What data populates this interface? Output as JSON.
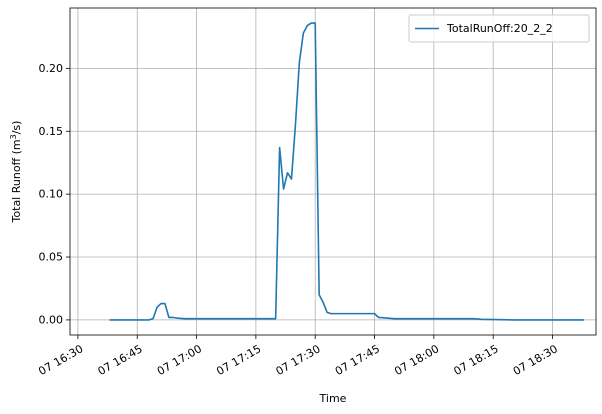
{
  "chart_data": {
    "type": "line",
    "title": "",
    "xlabel": "Time",
    "ylabel": "Total Runoff (m",
    "ylabel_sup": "3",
    "ylabel_tail": "/s)",
    "grid": true,
    "legend_placement": "top-right",
    "xlim": [
      "16:28",
      "18:41"
    ],
    "ylim": [
      -0.012,
      0.248
    ],
    "x_ticks": [
      {
        "time": "16:30",
        "label": "07 16:30"
      },
      {
        "time": "16:45",
        "label": "07 16:45"
      },
      {
        "time": "17:00",
        "label": "07 17:00"
      },
      {
        "time": "17:15",
        "label": "07 17:15"
      },
      {
        "time": "17:30",
        "label": "07 17:30"
      },
      {
        "time": "17:45",
        "label": "07 17:45"
      },
      {
        "time": "18:00",
        "label": "07 18:00"
      },
      {
        "time": "18:15",
        "label": "07 18:15"
      },
      {
        "time": "18:30",
        "label": "07 18:30"
      }
    ],
    "y_ticks": [
      {
        "value": 0.0,
        "label": "0.00"
      },
      {
        "value": 0.05,
        "label": "0.05"
      },
      {
        "value": 0.1,
        "label": "0.10"
      },
      {
        "value": 0.15,
        "label": "0.15"
      },
      {
        "value": 0.2,
        "label": "0.20"
      }
    ],
    "series": [
      {
        "name": "TotalRunOff:20_2_2",
        "color": "#1f77b4",
        "points": [
          [
            "16:38",
            0.0
          ],
          [
            "16:48",
            0.0
          ],
          [
            "16:49",
            0.001
          ],
          [
            "16:50",
            0.01
          ],
          [
            "16:51",
            0.013
          ],
          [
            "16:52",
            0.013
          ],
          [
            "16:53",
            0.002
          ],
          [
            "16:54",
            0.002
          ],
          [
            "16:55",
            0.0015
          ],
          [
            "16:57",
            0.001
          ],
          [
            "17:00",
            0.001
          ],
          [
            "17:20",
            0.001
          ],
          [
            "17:21",
            0.137
          ],
          [
            "17:22",
            0.104
          ],
          [
            "17:23",
            0.117
          ],
          [
            "17:24",
            0.112
          ],
          [
            "17:25",
            0.155
          ],
          [
            "17:26",
            0.205
          ],
          [
            "17:27",
            0.228
          ],
          [
            "17:28",
            0.234
          ],
          [
            "17:29",
            0.236
          ],
          [
            "17:30",
            0.236
          ],
          [
            "17:31",
            0.02
          ],
          [
            "17:32",
            0.014
          ],
          [
            "17:33",
            0.006
          ],
          [
            "17:34",
            0.005
          ],
          [
            "17:40",
            0.005
          ],
          [
            "17:45",
            0.005
          ],
          [
            "17:46",
            0.002
          ],
          [
            "17:48",
            0.0015
          ],
          [
            "17:50",
            0.001
          ],
          [
            "18:05",
            0.001
          ],
          [
            "18:10",
            0.001
          ],
          [
            "18:12",
            0.0005
          ],
          [
            "18:20",
            0.0
          ],
          [
            "18:38",
            0.0
          ]
        ]
      }
    ]
  }
}
